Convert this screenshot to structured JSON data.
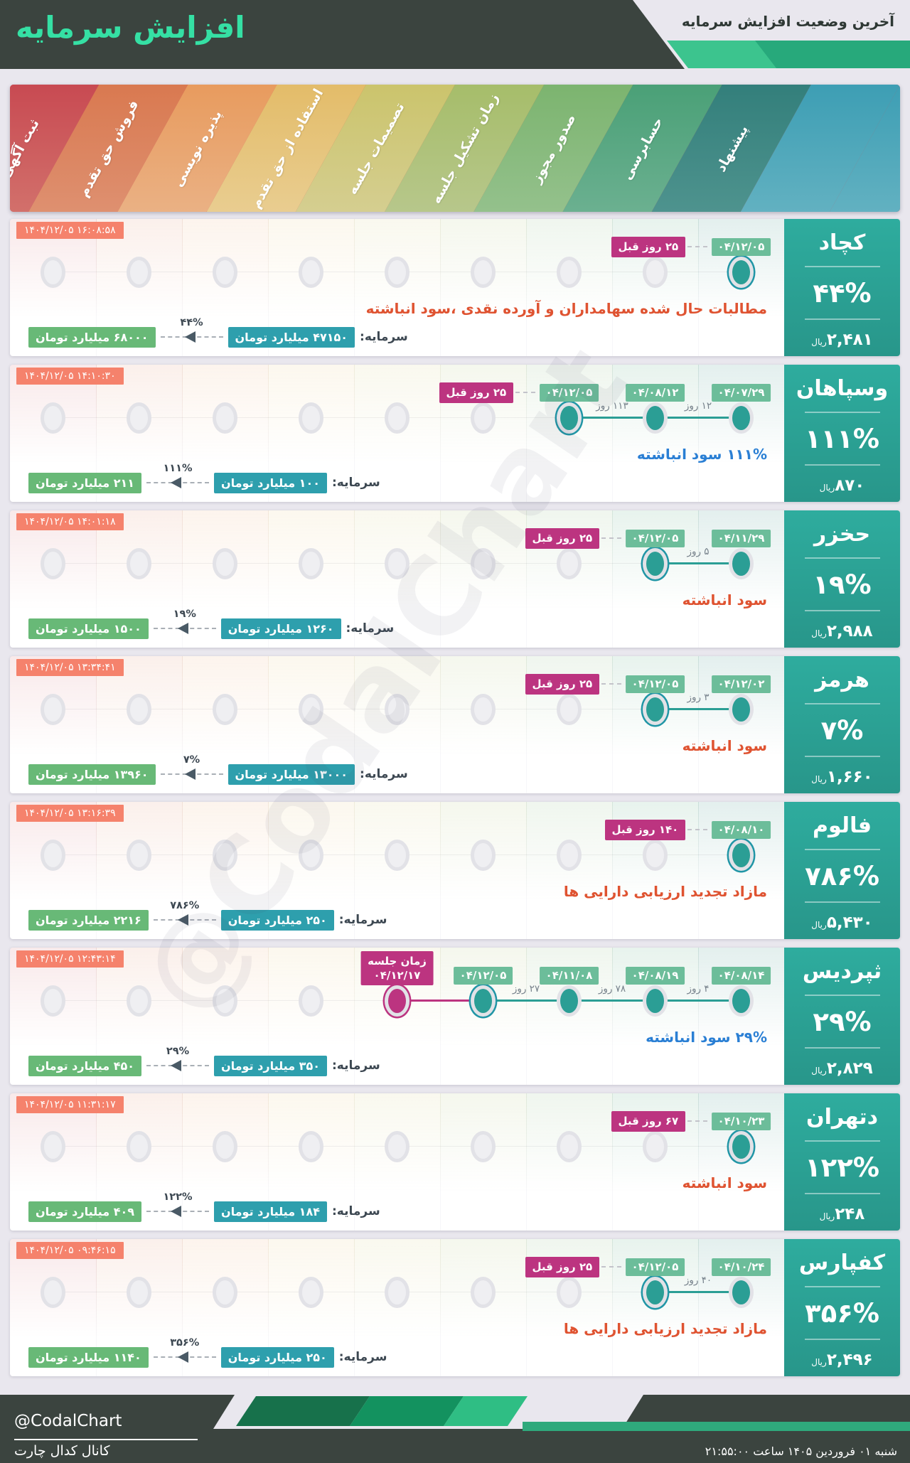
{
  "header": {
    "title": "افزایش سرمایه",
    "subtitle": "آخرین وضعیت افزایش سرمایه",
    "title_color": "#35E0A4",
    "bar_color": "#3B443F"
  },
  "stages": [
    {
      "label": "ثبت آگهی",
      "top": "#C84A52",
      "bottom": "#D2706B"
    },
    {
      "label": "فروش حق تقدم",
      "top": "#D97950",
      "bottom": "#DE9070"
    },
    {
      "label": "پذیره نویسی",
      "top": "#E89B5E",
      "bottom": "#EAB184"
    },
    {
      "label": "استفاده از حق تقدم",
      "top": "#E3BC69",
      "bottom": "#E9CD90"
    },
    {
      "label": "تصمیمات جلسه",
      "top": "#CBC46C",
      "bottom": "#D5CE90"
    },
    {
      "label": "زمان تشکیل جلسه",
      "top": "#A6BD6A",
      "bottom": "#B7C78B"
    },
    {
      "label": "صدور مجوز",
      "top": "#7CB46F",
      "bottom": "#94C18C"
    },
    {
      "label": "حسابرسی",
      "top": "#4AA077",
      "bottom": "#6BB090"
    },
    {
      "label": "پیشنهاد",
      "top": "#337F7B",
      "bottom": "#4E938E"
    },
    {
      "label": "",
      "top": "#3D9EB4",
      "bottom": "#62B1C1"
    }
  ],
  "column_tints": [
    "rgba(206,86,92,0.13)",
    "rgba(221,130,90,0.12)",
    "rgba(235,165,105,0.12)",
    "rgba(231,196,117,0.12)",
    "rgba(209,202,120,0.12)",
    "rgba(175,195,118,0.13)",
    "rgba(135,185,125,0.13)",
    "rgba(90,170,130,0.14)",
    "rgba(60,145,135,0.14)"
  ],
  "colors": {
    "accent_teal": "#2B9E95",
    "magenta": "#BC3480",
    "date_badge": "#6CBD9A",
    "timestamp_badge": "#F5826C",
    "capital_from": "#2E9FAD",
    "capital_to": "#68B977",
    "desc_red": "#DF5331",
    "desc_blue": "#2A7FD4",
    "sidebar": "#2CA195",
    "title_green": "#35E0A4"
  },
  "chart_data": {
    "type": "table",
    "title": "آخرین وضعیت افزایش سرمایه",
    "stage_axis": [
      "ثبت آگهی",
      "فروش حق تقدم",
      "پذیره نویسی",
      "استفاده از حق تقدم",
      "تصمیمات جلسه",
      "زمان تشکیل جلسه",
      "صدور مجوز",
      "حسابرسی",
      "پیشنهاد"
    ],
    "companies": [
      "کچاد",
      "وسپاهان",
      "حخزر",
      "هرمز",
      "فالوم",
      "ثپردیس",
      "دتهران",
      "کفپارس"
    ],
    "increase_percent": [
      44,
      111,
      19,
      7,
      786,
      29,
      122,
      356
    ],
    "price_rial": [
      "۲,۴۸۱",
      "۸۷۰",
      "۲,۹۸۸",
      "۱,۶۶۰",
      "۵,۴۳۰",
      "۲,۸۲۹",
      "۲۴۸",
      "۲,۴۹۶"
    ],
    "capital_from_to_milliard_toman": [
      [
        47150,
        68000
      ],
      [
        100,
        211
      ],
      [
        1260,
        1500
      ],
      [
        13000,
        13960
      ],
      [
        250,
        2216
      ],
      [
        350,
        450
      ],
      [
        184,
        409
      ],
      [
        250,
        1140
      ]
    ]
  },
  "rows": [
    {
      "company": "کچاد",
      "percent": "۴۴%",
      "price": "۲,۴۸۱",
      "price_unit": "ریال",
      "timestamp": "۱۴۰۴/۱۲/۰۵ ۱۶:۰۸:۵۸",
      "description": {
        "text": "مطالبات حال شده سهامداران و آورده نقدی ،سود انباشته",
        "color": "red"
      },
      "capital": {
        "label": "سرمایه:",
        "from": "۴۷۱۵۰ میلیارد تومان",
        "to": "۶۸۰۰۰ میلیارد تومان",
        "percent": "۴۴%"
      },
      "dots": [
        {
          "col": 9,
          "date": "۰۴/۱۲/۰۵",
          "ringed": true,
          "ago": "۲۵ روز قبل"
        }
      ],
      "segments": []
    },
    {
      "company": "وسپاهان",
      "percent": "۱۱۱%",
      "price": "۸۷۰",
      "price_unit": "ریال",
      "timestamp": "۱۴۰۴/۱۲/۰۵ ۱۴:۱۰:۳۰",
      "description": {
        "text": "۱۱۱% سود انباشته",
        "color": "blue"
      },
      "capital": {
        "label": "سرمایه:",
        "from": "۱۰۰ میلیارد تومان",
        "to": "۲۱۱ میلیارد تومان",
        "percent": "۱۱۱%"
      },
      "dots": [
        {
          "col": 9,
          "date": "۰۴/۰۷/۲۹"
        },
        {
          "col": 8,
          "date": "۰۴/۰۸/۱۲"
        },
        {
          "col": 7,
          "date": "۰۴/۱۲/۰۵",
          "ringed": true,
          "ago": "۲۵ روز قبل"
        }
      ],
      "segments": [
        {
          "a": 9,
          "b": 8,
          "label": "۱۲ روز"
        },
        {
          "a": 8,
          "b": 7,
          "label": "۱۱۳ روز"
        }
      ]
    },
    {
      "company": "حخزر",
      "percent": "۱۹%",
      "price": "۲,۹۸۸",
      "price_unit": "ریال",
      "timestamp": "۱۴۰۴/۱۲/۰۵ ۱۴:۰۱:۱۸",
      "description": {
        "text": "سود انباشته",
        "color": "red"
      },
      "capital": {
        "label": "سرمایه:",
        "from": "۱۲۶۰ میلیارد تومان",
        "to": "۱۵۰۰ میلیارد تومان",
        "percent": "۱۹%"
      },
      "dots": [
        {
          "col": 9,
          "date": "۰۴/۱۱/۲۹"
        },
        {
          "col": 8,
          "date": "۰۴/۱۲/۰۵",
          "ringed": true,
          "ago": "۲۵ روز قبل"
        }
      ],
      "segments": [
        {
          "a": 9,
          "b": 8,
          "label": "۵ روز"
        }
      ]
    },
    {
      "company": "هرمز",
      "percent": "۷%",
      "price": "۱,۶۶۰",
      "price_unit": "ریال",
      "timestamp": "۱۴۰۴/۱۲/۰۵ ۱۳:۳۴:۴۱",
      "description": {
        "text": "سود انباشته",
        "color": "red"
      },
      "capital": {
        "label": "سرمایه:",
        "from": "۱۳۰۰۰ میلیارد تومان",
        "to": "۱۳۹۶۰ میلیارد تومان",
        "percent": "۷%"
      },
      "dots": [
        {
          "col": 9,
          "date": "۰۴/۱۲/۰۲"
        },
        {
          "col": 8,
          "date": "۰۴/۱۲/۰۵",
          "ringed": true,
          "ago": "۲۵ روز قبل"
        }
      ],
      "segments": [
        {
          "a": 9,
          "b": 8,
          "label": "۳ روز"
        }
      ]
    },
    {
      "company": "فالوم",
      "percent": "۷۸۶%",
      "price": "۵,۴۳۰",
      "price_unit": "ریال",
      "timestamp": "۱۴۰۴/۱۲/۰۵ ۱۳:۱۶:۳۹",
      "description": {
        "text": "مازاد تجدید ارزیابی دارایی ها",
        "color": "red"
      },
      "capital": {
        "label": "سرمایه:",
        "from": "۲۵۰ میلیارد تومان",
        "to": "۲۲۱۶ میلیارد تومان",
        "percent": "۷۸۶%"
      },
      "dots": [
        {
          "col": 9,
          "date": "۰۴/۰۸/۱۰",
          "ringed": true,
          "ago": "۱۴۰ روز قبل"
        }
      ],
      "segments": []
    },
    {
      "company": "ثپردیس",
      "percent": "۲۹%",
      "price": "۲,۸۲۹",
      "price_unit": "ریال",
      "timestamp": "۱۴۰۴/۱۲/۰۵ ۱۲:۴۳:۱۴",
      "description": {
        "text": "۲۹% سود انباشته",
        "color": "blue"
      },
      "capital": {
        "label": "سرمایه:",
        "from": "۳۵۰ میلیارد تومان",
        "to": "۴۵۰ میلیارد تومان",
        "percent": "۲۹%"
      },
      "dots": [
        {
          "col": 9,
          "date": "۰۴/۰۸/۱۴"
        },
        {
          "col": 8,
          "date": "۰۴/۰۸/۱۹"
        },
        {
          "col": 7,
          "date": "۰۴/۱۱/۰۸"
        },
        {
          "col": 6,
          "date": "۰۴/۱۲/۰۵",
          "ringed": true
        },
        {
          "col": 5,
          "scheduled": true,
          "badge_line1": "زمان جلسه",
          "badge_line2": "۰۴/۱۲/۱۷"
        }
      ],
      "segments": [
        {
          "a": 9,
          "b": 8,
          "label": "۴ روز"
        },
        {
          "a": 8,
          "b": 7,
          "label": "۷۸ روز"
        },
        {
          "a": 7,
          "b": 6,
          "label": "۲۷ روز"
        },
        {
          "a": 6,
          "b": 5,
          "label": "",
          "magenta": true
        }
      ]
    },
    {
      "company": "دتهران",
      "percent": "۱۲۲%",
      "price": "۲۴۸",
      "price_unit": "ریال",
      "timestamp": "۱۴۰۴/۱۲/۰۵ ۱۱:۳۱:۱۷",
      "description": {
        "text": "سود انباشته",
        "color": "red"
      },
      "capital": {
        "label": "سرمایه:",
        "from": "۱۸۴ میلیارد تومان",
        "to": "۴۰۹ میلیارد تومان",
        "percent": "۱۲۲%"
      },
      "dots": [
        {
          "col": 9,
          "date": "۰۴/۱۰/۲۳",
          "ringed": true,
          "ago": "۶۷ روز قبل"
        }
      ],
      "segments": []
    },
    {
      "company": "کفپارس",
      "percent": "۳۵۶%",
      "price": "۲,۴۹۶",
      "price_unit": "ریال",
      "timestamp": "۱۴۰۴/۱۲/۰۵ ۰۹:۴۶:۱۵",
      "description": {
        "text": "مازاد تجدید ارزیابی دارایی ها",
        "color": "red"
      },
      "capital": {
        "label": "سرمایه:",
        "from": "۲۵۰ میلیارد تومان",
        "to": "۱۱۴۰ میلیارد تومان",
        "percent": "۳۵۶%"
      },
      "dots": [
        {
          "col": 9,
          "date": "۰۴/۱۰/۲۴"
        },
        {
          "col": 8,
          "date": "۰۴/۱۲/۰۵",
          "ringed": true,
          "ago": "۲۵ روز قبل"
        }
      ],
      "segments": [
        {
          "a": 9,
          "b": 8,
          "label": "۴۰ روز"
        }
      ]
    }
  ],
  "footer": {
    "handle": "@CodalChart",
    "channel": "کانال کدال چارت",
    "datetime": "شنبه ۰۱ فروردین ۱۴۰۵ ساعت ۲۱:۵۵:۰۰"
  },
  "watermark": "@CodalChart"
}
